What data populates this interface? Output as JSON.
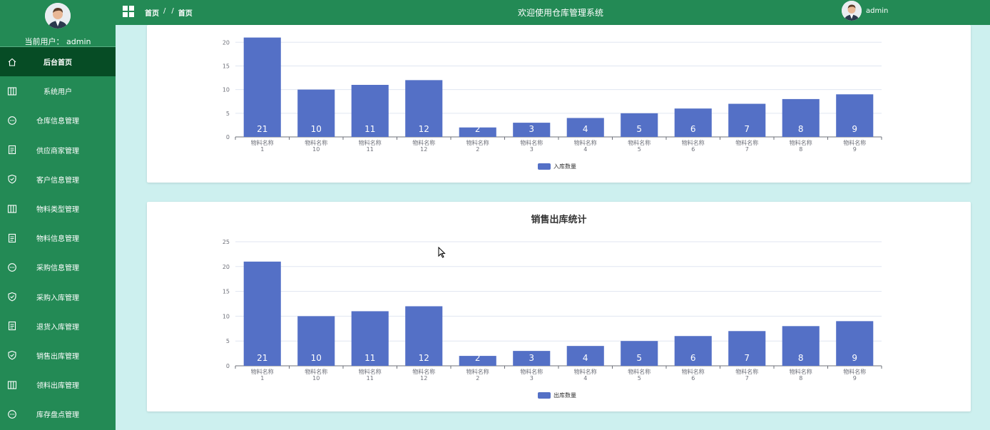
{
  "sidebar": {
    "current_user_label": "当前用户：",
    "current_user": "admin",
    "items": [
      {
        "label": "后台首页",
        "icon": "home-icon",
        "active": true
      },
      {
        "label": "系统用户",
        "icon": "columns-icon"
      },
      {
        "label": "仓库信息管理",
        "icon": "chat-icon"
      },
      {
        "label": "供应商家管理",
        "icon": "document-icon"
      },
      {
        "label": "客户信息管理",
        "icon": "shield-icon"
      },
      {
        "label": "物料类型管理",
        "icon": "columns-icon"
      },
      {
        "label": "物料信息管理",
        "icon": "document-icon"
      },
      {
        "label": "采购信息管理",
        "icon": "chat-icon"
      },
      {
        "label": "采购入库管理",
        "icon": "shield-icon"
      },
      {
        "label": "退货入库管理",
        "icon": "document-icon"
      },
      {
        "label": "销售出库管理",
        "icon": "shield-icon"
      },
      {
        "label": "领料出库管理",
        "icon": "columns-icon"
      },
      {
        "label": "库存盘点管理",
        "icon": "chat-icon"
      }
    ]
  },
  "header": {
    "breadcrumb": [
      "首页",
      "/",
      "/",
      "首页"
    ],
    "welcome": "欢迎使用仓库管理系统",
    "username": "admin"
  },
  "colors": {
    "bar": "#5470c6",
    "sidebar": "#238a55",
    "active": "#064c25"
  },
  "chart_data": [
    {
      "type": "bar",
      "title": "",
      "categories": [
        "物料名称\n1",
        "物料名称\n10",
        "物料名称\n11",
        "物料名称\n12",
        "物料名称\n2",
        "物料名称\n3",
        "物料名称\n4",
        "物料名称\n5",
        "物料名称\n6",
        "物料名称\n7",
        "物料名称\n8",
        "物料名称\n9"
      ],
      "series": [
        {
          "name": "入库数量",
          "values": [
            21,
            10,
            11,
            12,
            2,
            3,
            4,
            5,
            6,
            7,
            8,
            9
          ]
        }
      ],
      "yticks": [
        0,
        5,
        10,
        15,
        20
      ],
      "ylim": [
        0,
        22
      ],
      "legend": "bottom-center"
    },
    {
      "type": "bar",
      "title": "销售出库统计",
      "categories": [
        "物料名称\n1",
        "物料名称\n10",
        "物料名称\n11",
        "物料名称\n12",
        "物料名称\n2",
        "物料名称\n3",
        "物料名称\n4",
        "物料名称\n5",
        "物料名称\n6",
        "物料名称\n7",
        "物料名称\n8",
        "物料名称\n9"
      ],
      "series": [
        {
          "name": "出库数量",
          "values": [
            21,
            10,
            11,
            12,
            2,
            3,
            4,
            5,
            6,
            7,
            8,
            9
          ]
        }
      ],
      "yticks": [
        0,
        5,
        10,
        15,
        20,
        25
      ],
      "ylim": [
        0,
        25
      ],
      "legend": "bottom-center"
    }
  ]
}
